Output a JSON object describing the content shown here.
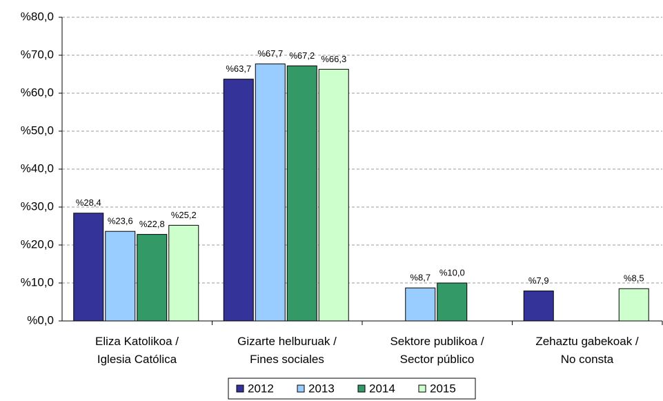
{
  "chart_data": {
    "type": "bar",
    "categories": [
      "Eliza Katolikoa /\nIglesia Católica",
      "Gizarte helburuak /\nFines sociales",
      "Sektore publikoa /\nSector público",
      "Zehaztu gabekoak /\nNo consta"
    ],
    "series": [
      {
        "name": "2012",
        "color": "#333399",
        "values": [
          28.4,
          63.7,
          null,
          7.9
        ],
        "value_labels": [
          "%28,4",
          "%63,7",
          null,
          "%7,9"
        ]
      },
      {
        "name": "2013",
        "color": "#99ccff",
        "values": [
          23.6,
          67.7,
          8.7,
          null
        ],
        "value_labels": [
          "%23,6",
          "%67,7",
          "%8,7",
          null
        ]
      },
      {
        "name": "2014",
        "color": "#339966",
        "values": [
          22.8,
          67.2,
          10.0,
          null
        ],
        "value_labels": [
          "%22,8",
          "%67,2",
          "%10,0",
          null
        ]
      },
      {
        "name": "2015",
        "color": "#ccffcc",
        "values": [
          25.2,
          66.3,
          null,
          8.5
        ],
        "value_labels": [
          "%25,2",
          "%66,3",
          null,
          "%8,5"
        ]
      }
    ],
    "ylim": [
      0,
      80
    ],
    "yticks": [
      {
        "value": 0,
        "label": "%0,0"
      },
      {
        "value": 10,
        "label": "%10,0"
      },
      {
        "value": 20,
        "label": "%20,0"
      },
      {
        "value": 30,
        "label": "%30,0"
      },
      {
        "value": 40,
        "label": "%40,0"
      },
      {
        "value": 50,
        "label": "%50,0"
      },
      {
        "value": 60,
        "label": "%60,0"
      },
      {
        "value": 70,
        "label": "%70,0"
      },
      {
        "value": 80,
        "label": "%80,0"
      }
    ],
    "grid": true,
    "legend": "bottom"
  }
}
